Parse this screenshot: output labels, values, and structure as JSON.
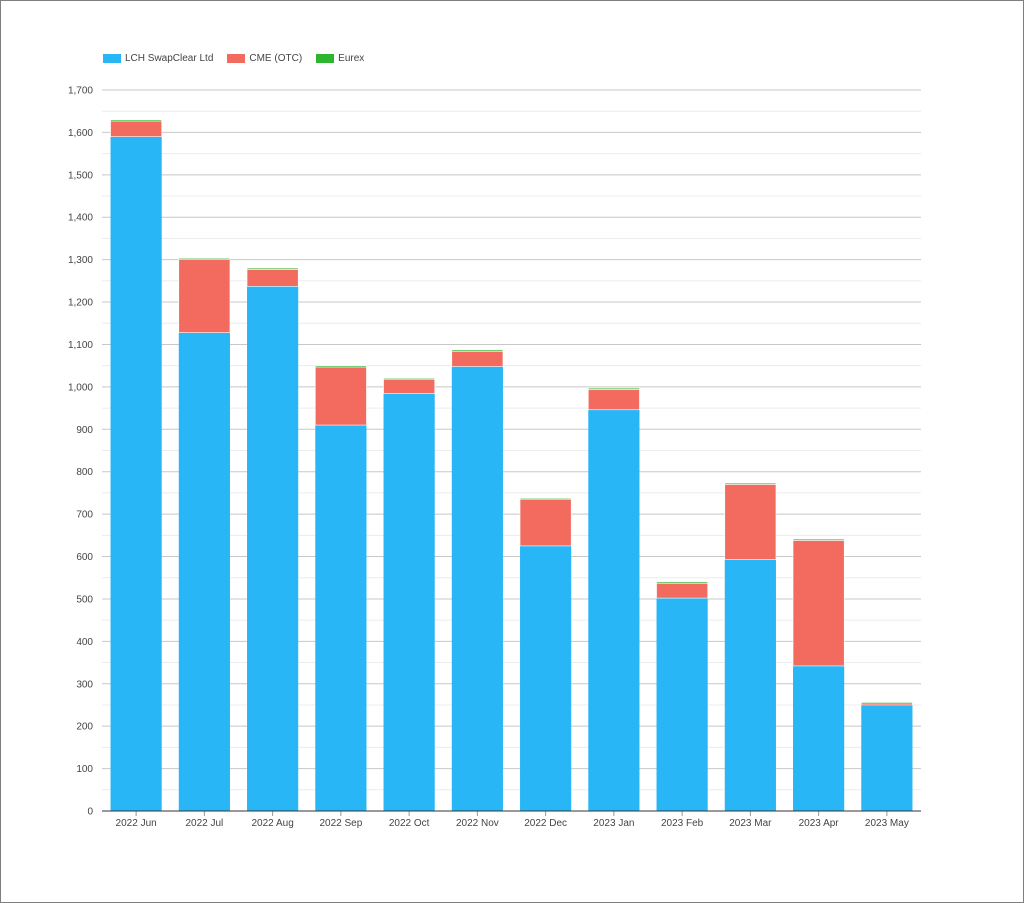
{
  "chart_data": {
    "type": "bar",
    "stacked": true,
    "categories": [
      "2022 Jun",
      "2022 Jul",
      "2022 Aug",
      "2022 Sep",
      "2022 Oct",
      "2022 Nov",
      "2022 Dec",
      "2023 Jan",
      "2023 Feb",
      "2023 Mar",
      "2023 Apr",
      "2023 May"
    ],
    "series": [
      {
        "name": "LCH SwapClear Ltd",
        "color": "#29b6f6",
        "values": [
          1590,
          1128,
          1237,
          910,
          984,
          1048,
          625,
          946,
          502,
          593,
          342,
          250
        ]
      },
      {
        "name": "CME (OTC)",
        "color": "#f26b5e",
        "values": [
          37,
          172,
          40,
          137,
          33,
          36,
          109,
          48,
          35,
          177,
          296,
          5
        ]
      },
      {
        "name": "Eurex",
        "color": "#2db52d",
        "values": [
          3,
          3,
          3,
          3,
          3,
          3,
          3,
          3,
          3,
          3,
          3,
          2
        ]
      }
    ],
    "yticks": [
      "0",
      "100",
      "200",
      "300",
      "400",
      "500",
      "600",
      "700",
      "800",
      "900",
      "1,000",
      "1,100",
      "1,200",
      "1,300",
      "1,400",
      "1,500",
      "1,600",
      "1,700"
    ],
    "ylim": [
      0,
      1700
    ],
    "grid": true,
    "legend_position": "top-left"
  }
}
